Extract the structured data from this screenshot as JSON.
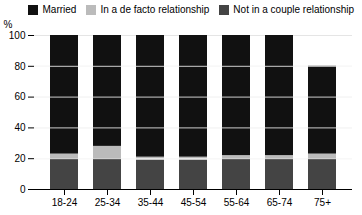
{
  "chart_data": {
    "type": "bar",
    "stacked": true,
    "categories": [
      "18-24",
      "25-34",
      "35-44",
      "45-54",
      "55-64",
      "65-74",
      "75+"
    ],
    "series": [
      {
        "name": "Not in a couple relationship",
        "color": "#444444",
        "values": [
          20,
          20,
          19,
          19,
          20,
          20,
          20
        ]
      },
      {
        "name": "In a de facto relationship",
        "color": "#bbbbbb",
        "values": [
          3,
          8,
          2,
          2,
          2,
          2,
          3
        ]
      },
      {
        "name": "Married",
        "color": "#111111",
        "values": [
          77,
          72,
          79,
          79,
          78,
          78,
          57
        ]
      }
    ],
    "ylabel": "%",
    "ylim": [
      0,
      100
    ],
    "yticks": [
      0,
      20,
      40,
      60,
      80,
      100
    ],
    "grid": true,
    "legend": "upper right"
  }
}
